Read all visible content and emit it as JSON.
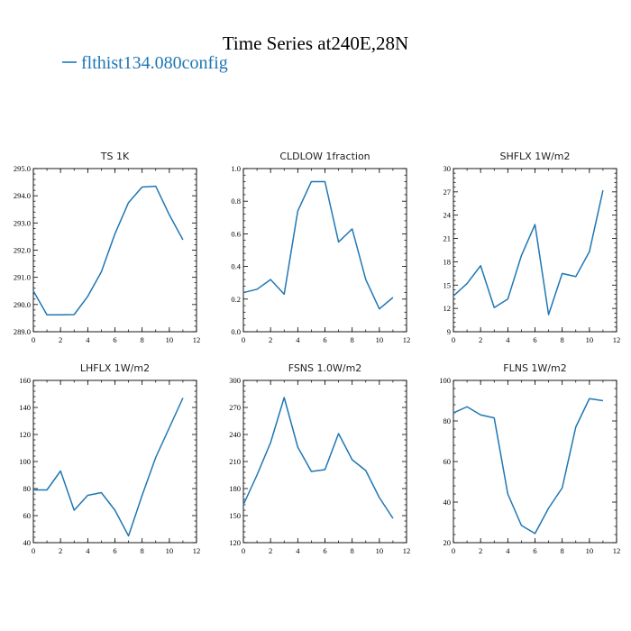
{
  "figure": {
    "title": "Time Series at240E,28N",
    "legend_label": "flthist134.080config",
    "line_color": "#1f77b4"
  },
  "chart_data": [
    {
      "type": "line",
      "title": "TS   1K",
      "x": [
        0,
        1,
        2,
        3,
        4,
        5,
        6,
        7,
        8,
        9,
        10,
        11
      ],
      "series": [
        {
          "name": "flthist134.080config",
          "values": [
            290.5,
            289.62,
            289.62,
            289.63,
            290.3,
            291.2,
            292.6,
            293.75,
            294.32,
            294.35,
            293.3,
            292.38
          ]
        }
      ],
      "xlim": [
        0,
        12
      ],
      "ylim": [
        289.0,
        295.0
      ],
      "xticks": [
        0,
        2,
        4,
        6,
        8,
        10,
        12
      ],
      "yticks": [
        289.0,
        290.0,
        291.0,
        292.0,
        293.0,
        294.0,
        295.0
      ],
      "ytick_labels": [
        "289.0",
        "290.0",
        "291.0",
        "292.0",
        "293.0",
        "294.0",
        "295.0"
      ]
    },
    {
      "type": "line",
      "title": "CLDLOW   1fraction",
      "x": [
        0,
        1,
        2,
        3,
        4,
        5,
        6,
        7,
        8,
        9,
        10,
        11
      ],
      "series": [
        {
          "name": "flthist134.080config",
          "values": [
            0.24,
            0.26,
            0.32,
            0.23,
            0.74,
            0.92,
            0.92,
            0.55,
            0.63,
            0.32,
            0.14,
            0.21
          ]
        }
      ],
      "xlim": [
        0,
        12
      ],
      "ylim": [
        0.0,
        1.0
      ],
      "xticks": [
        0,
        2,
        4,
        6,
        8,
        10,
        12
      ],
      "yticks": [
        0.0,
        0.2,
        0.4,
        0.6,
        0.8,
        1.0
      ],
      "ytick_labels": [
        "0.0",
        "0.2",
        "0.4",
        "0.6",
        "0.8",
        "1.0"
      ]
    },
    {
      "type": "line",
      "title": "SHFLX   1W/m2",
      "x": [
        0,
        1,
        2,
        3,
        4,
        5,
        6,
        7,
        8,
        9,
        10,
        11
      ],
      "series": [
        {
          "name": "flthist134.080config",
          "values": [
            13.6,
            15.2,
            17.5,
            12.1,
            13.2,
            18.8,
            22.8,
            11.2,
            16.5,
            16.1,
            19.3,
            27.2
          ]
        }
      ],
      "xlim": [
        0,
        12
      ],
      "ylim": [
        9,
        30
      ],
      "xticks": [
        0,
        2,
        4,
        6,
        8,
        10,
        12
      ],
      "yticks": [
        9,
        12,
        15,
        18,
        21,
        24,
        27,
        30
      ],
      "ytick_labels": [
        "9",
        "12",
        "15",
        "18",
        "21",
        "24",
        "27",
        "30"
      ]
    },
    {
      "type": "line",
      "title": "LHFLX   1W/m2",
      "x": [
        0,
        1,
        2,
        3,
        4,
        5,
        6,
        7,
        8,
        9,
        10,
        11
      ],
      "series": [
        {
          "name": "flthist134.080config",
          "values": [
            79,
            79,
            93,
            64,
            75,
            77,
            64,
            45,
            75,
            103,
            125,
            147
          ]
        }
      ],
      "xlim": [
        0,
        12
      ],
      "ylim": [
        40,
        160
      ],
      "xticks": [
        0,
        2,
        4,
        6,
        8,
        10,
        12
      ],
      "yticks": [
        40,
        60,
        80,
        100,
        120,
        140,
        160
      ],
      "ytick_labels": [
        "40",
        "60",
        "80",
        "100",
        "120",
        "140",
        "160"
      ]
    },
    {
      "type": "line",
      "title": "FSNS   1.0W/m2",
      "x": [
        0,
        1,
        2,
        3,
        4,
        5,
        6,
        7,
        8,
        9,
        10,
        11
      ],
      "series": [
        {
          "name": "flthist134.080config",
          "values": [
            162,
            195,
            231,
            281,
            226,
            199,
            201,
            241,
            212,
            200,
            170,
            147
          ]
        }
      ],
      "xlim": [
        0,
        12
      ],
      "ylim": [
        120,
        300
      ],
      "xticks": [
        0,
        2,
        4,
        6,
        8,
        10,
        12
      ],
      "yticks": [
        120,
        150,
        180,
        210,
        240,
        270,
        300
      ],
      "ytick_labels": [
        "120",
        "150",
        "180",
        "210",
        "240",
        "270",
        "300"
      ]
    },
    {
      "type": "line",
      "title": "FLNS   1W/m2",
      "x": [
        0,
        1,
        2,
        3,
        4,
        5,
        6,
        7,
        8,
        9,
        10,
        11
      ],
      "series": [
        {
          "name": "flthist134.080config",
          "values": [
            84,
            87,
            83,
            81.5,
            44,
            28.5,
            24.5,
            37,
            47,
            77,
            91,
            90
          ]
        }
      ],
      "xlim": [
        0,
        12
      ],
      "ylim": [
        20,
        100
      ],
      "xticks": [
        0,
        2,
        4,
        6,
        8,
        10,
        12
      ],
      "yticks": [
        20,
        40,
        60,
        80,
        100
      ],
      "ytick_labels": [
        "20",
        "40",
        "60",
        "80",
        "100"
      ]
    }
  ]
}
